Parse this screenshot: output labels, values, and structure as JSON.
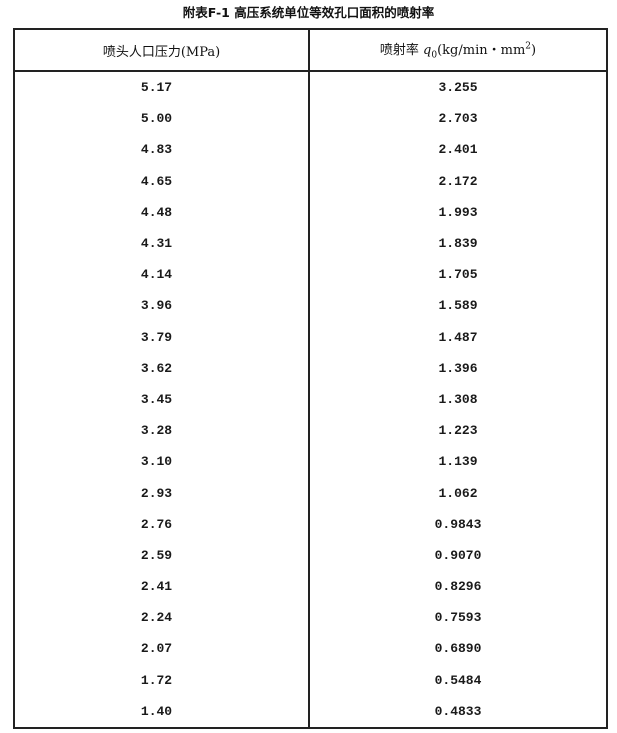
{
  "title": "附表F-1 高压系统单位等效孔口面积的喷射率",
  "headers": {
    "pressure": "喷头人口压力(MPa)",
    "rate_prefix": "喷射率 ",
    "rate_symbol": "q",
    "rate_subscript": "0",
    "rate_unit": "(kg/min・mm",
    "rate_unit_sup": "2",
    "rate_unit_close": ")"
  },
  "rows": [
    {
      "pressure": "5.17",
      "rate": "3.255"
    },
    {
      "pressure": "5.00",
      "rate": "2.703"
    },
    {
      "pressure": "4.83",
      "rate": "2.401"
    },
    {
      "pressure": "4.65",
      "rate": "2.172"
    },
    {
      "pressure": "4.48",
      "rate": "1.993"
    },
    {
      "pressure": "4.31",
      "rate": "1.839"
    },
    {
      "pressure": "4.14",
      "rate": "1.705"
    },
    {
      "pressure": "3.96",
      "rate": "1.589"
    },
    {
      "pressure": "3.79",
      "rate": "1.487"
    },
    {
      "pressure": "3.62",
      "rate": "1.396"
    },
    {
      "pressure": "3.45",
      "rate": "1.308"
    },
    {
      "pressure": "3.28",
      "rate": "1.223"
    },
    {
      "pressure": "3.10",
      "rate": "1.139"
    },
    {
      "pressure": "2.93",
      "rate": "1.062"
    },
    {
      "pressure": "2.76",
      "rate": "0.9843"
    },
    {
      "pressure": "2.59",
      "rate": "0.9070"
    },
    {
      "pressure": "2.41",
      "rate": "0.8296"
    },
    {
      "pressure": "2.24",
      "rate": "0.7593"
    },
    {
      "pressure": "2.07",
      "rate": "0.6890"
    },
    {
      "pressure": "1.72",
      "rate": "0.5484"
    },
    {
      "pressure": "1.40",
      "rate": "0.4833"
    }
  ]
}
